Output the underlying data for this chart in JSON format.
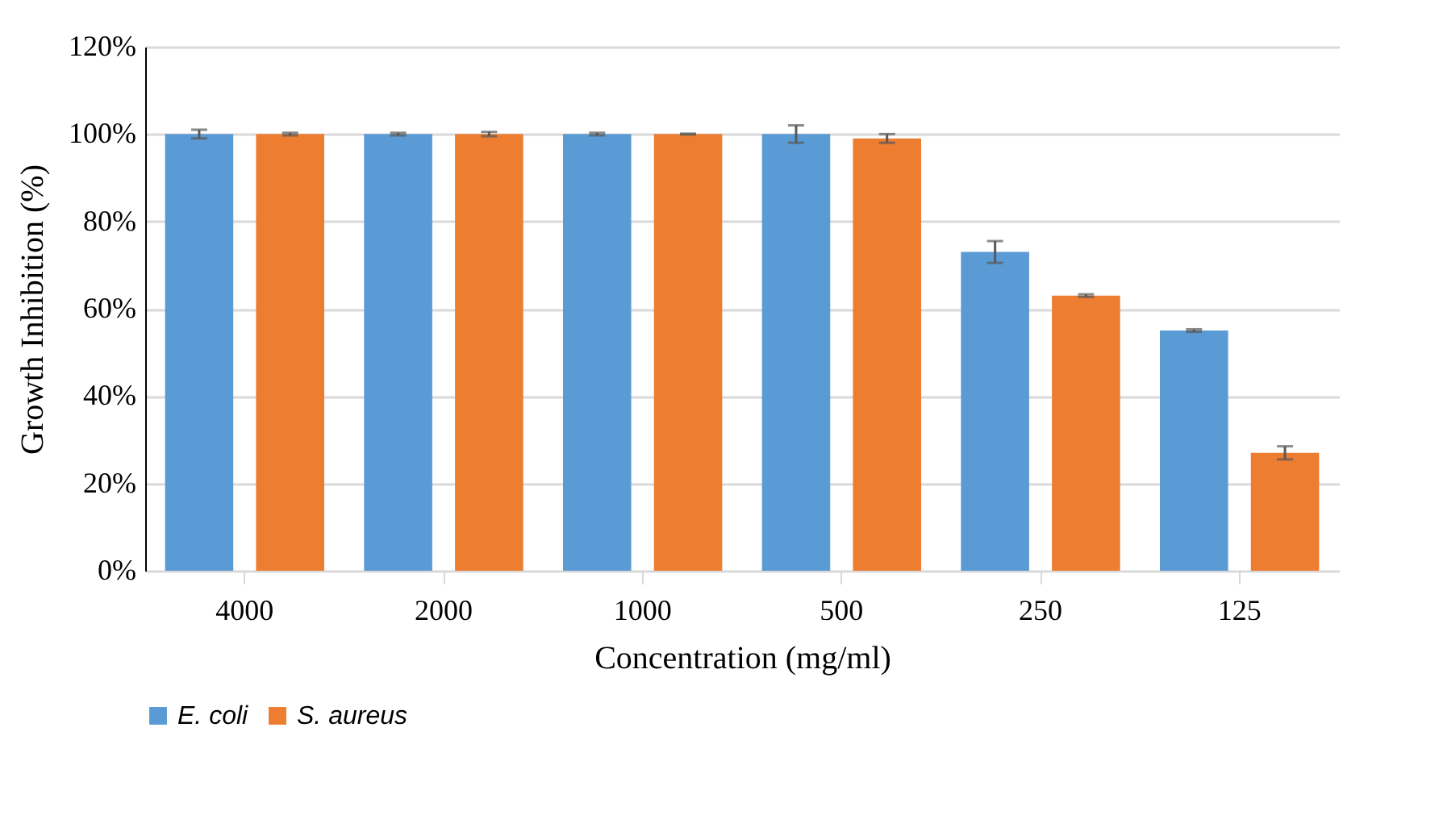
{
  "chart_data": {
    "type": "bar",
    "xlabel": "Concentration (mg/ml)",
    "ylabel": "Growth Inhibition (%)",
    "categories": [
      "4000",
      "2000",
      "1000",
      "500",
      "250",
      "125"
    ],
    "series": [
      {
        "name": "E. coli",
        "color": "#5b9bd5",
        "values": [
          100,
          100,
          100,
          100,
          73,
          55
        ],
        "errors": [
          1,
          0.3,
          0.3,
          2,
          2.5,
          0.3
        ]
      },
      {
        "name": "S. aureus",
        "color": "#ed7d31",
        "values": [
          100,
          100,
          100,
          99,
          63,
          27
        ],
        "errors": [
          0.3,
          0.5,
          0.1,
          1,
          0.3,
          1.5
        ]
      }
    ],
    "ylim": [
      0,
      120
    ],
    "yticks": [
      {
        "value": 0,
        "label": "0%"
      },
      {
        "value": 20,
        "label": "20%"
      },
      {
        "value": 40,
        "label": "40%"
      },
      {
        "value": 60,
        "label": "60%"
      },
      {
        "value": 80,
        "label": "80%"
      },
      {
        "value": 100,
        "label": "100%"
      },
      {
        "value": 120,
        "label": "120%"
      }
    ],
    "grid": "y",
    "legend": "bottom"
  }
}
